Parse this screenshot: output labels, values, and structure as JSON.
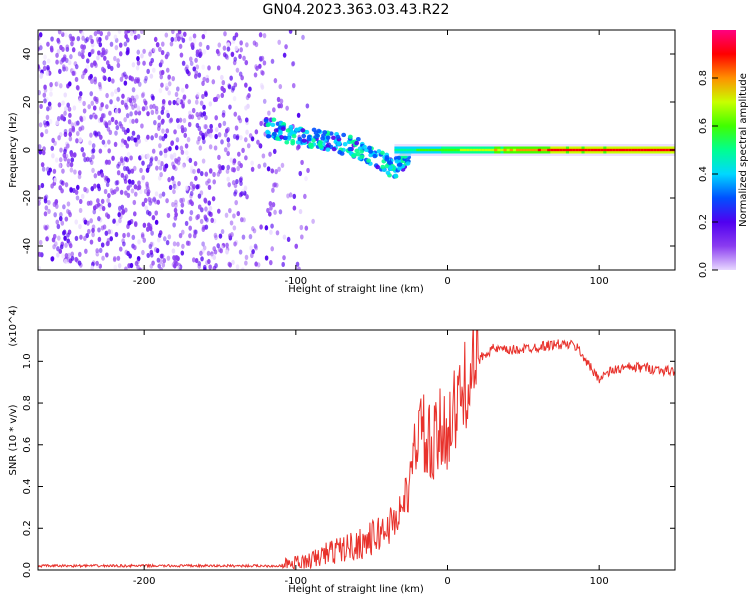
{
  "title": "GN04.2023.363.03.43.R22",
  "chart_data": [
    {
      "type": "heatmap",
      "title": "GN04.2023.363.03.43.R22",
      "xlabel": "Height of straight line (km)",
      "ylabel": "Frequency (Hz)",
      "xlim": [
        -270,
        150
      ],
      "ylim": [
        -50,
        50
      ],
      "xticks": [
        -200,
        -100,
        0,
        100
      ],
      "yticks": [
        -40,
        -20,
        0,
        20,
        40
      ],
      "colorbar": {
        "label": "Normalized spectral amplitude",
        "range": [
          0,
          1
        ],
        "ticks": [
          0.0,
          0.2,
          0.4,
          0.6,
          0.8
        ],
        "colors": [
          "#e8d8ff",
          "#8a3cf0",
          "#5000f0",
          "#0050ff",
          "#00d8ff",
          "#00ff90",
          "#40ff00",
          "#c8ff00",
          "#ff9000",
          "#ff0000",
          "#ff0080"
        ]
      },
      "features": [
        {
          "name": "noise",
          "x_range": [
            -270,
            -100
          ],
          "freq_range": [
            -50,
            50
          ],
          "amplitude": 0.1
        },
        {
          "name": "head-echo",
          "x": [
            -120,
            -100,
            -80,
            -60,
            -45,
            -35,
            -25
          ],
          "freq": [
            10,
            6,
            4,
            1,
            -4,
            -8,
            -2
          ],
          "amplitude": 0.35
        },
        {
          "name": "carrier",
          "x_range": [
            -35,
            150
          ],
          "freq": 0,
          "amplitude": [
            0.5,
            0.95
          ]
        }
      ]
    },
    {
      "type": "line",
      "xlabel": "Height of straight line (km)",
      "ylabel": "SNR (10 * v/v)",
      "y_exponent": "(x10^4)",
      "xlim": [
        -270,
        150
      ],
      "ylim": [
        0,
        1.15
      ],
      "xticks": [
        -200,
        -100,
        0,
        100
      ],
      "yticks": [
        0.0,
        0.2,
        0.4,
        0.6,
        0.8,
        1.0
      ],
      "color": "#e8322c",
      "x": [
        -270,
        -200,
        -150,
        -110,
        -100,
        -90,
        -85,
        -80,
        -70,
        -60,
        -50,
        -40,
        -35,
        -30,
        -25,
        -22,
        -20,
        -15,
        -10,
        -5,
        0,
        5,
        10,
        15,
        20,
        25,
        30,
        40,
        50,
        60,
        70,
        80,
        85,
        90,
        95,
        100,
        105,
        110,
        120,
        130,
        140,
        150
      ],
      "y": [
        0.02,
        0.02,
        0.02,
        0.02,
        0.03,
        0.04,
        0.06,
        0.08,
        0.1,
        0.12,
        0.15,
        0.2,
        0.24,
        0.3,
        0.4,
        0.55,
        0.7,
        0.62,
        0.55,
        0.65,
        0.7,
        0.75,
        0.85,
        0.95,
        1.0,
        1.04,
        1.06,
        1.05,
        1.06,
        1.07,
        1.08,
        1.08,
        1.07,
        1.02,
        0.96,
        0.92,
        0.94,
        0.96,
        0.97,
        0.97,
        0.96,
        0.95
      ]
    }
  ]
}
